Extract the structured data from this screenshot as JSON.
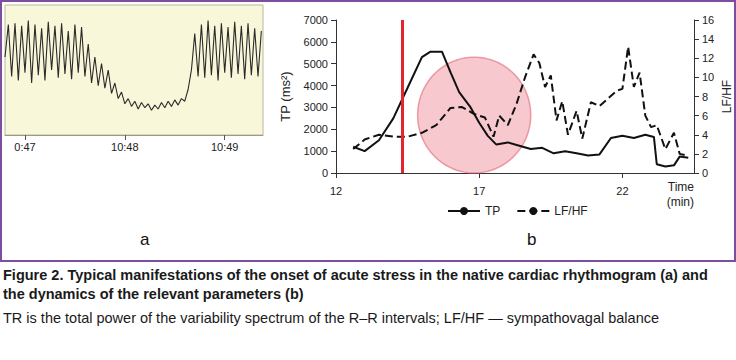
{
  "chart_data": [
    {
      "type": "line",
      "title": "a",
      "x": [
        0,
        2,
        4,
        6,
        8,
        10,
        12,
        14,
        16,
        18,
        20,
        22,
        24,
        26,
        28,
        30,
        32,
        34,
        36,
        38,
        40,
        42,
        44,
        46,
        48,
        50,
        52,
        54,
        56,
        58,
        60,
        62,
        64,
        66,
        68,
        70,
        72,
        74,
        76,
        78,
        80,
        82,
        84,
        86,
        88,
        90,
        92,
        94,
        96,
        98,
        100,
        102,
        104,
        106,
        108,
        110,
        112,
        114,
        116,
        118,
        120,
        122,
        124,
        126,
        128,
        130,
        132,
        134,
        136,
        138,
        140,
        142,
        144,
        146,
        148,
        150,
        152,
        154
      ],
      "values": [
        60,
        85,
        45,
        86,
        42,
        84,
        48,
        88,
        40,
        85,
        46,
        82,
        42,
        87,
        50,
        84,
        44,
        86,
        47,
        80,
        43,
        85,
        48,
        83,
        45,
        70,
        40,
        60,
        38,
        55,
        36,
        50,
        32,
        40,
        28,
        33,
        24,
        28,
        22,
        26,
        20,
        25,
        21,
        24,
        19,
        23,
        20,
        25,
        21,
        26,
        22,
        27,
        23,
        28,
        26,
        35,
        50,
        78,
        45,
        85,
        44,
        88,
        46,
        84,
        42,
        86,
        48,
        83,
        44,
        87,
        47,
        84,
        43,
        86,
        46,
        82,
        45,
        80
      ],
      "color": "#2b2b2b",
      "xlim": [
        0,
        155
      ],
      "xticks": [
        {
          "value": 12,
          "label": "0:47"
        },
        {
          "value": 72,
          "label": "10:48"
        },
        {
          "value": 132,
          "label": "10:49"
        }
      ],
      "ylim": [
        0,
        100
      ],
      "grid": false,
      "tick_labels": "x"
    },
    {
      "type": "line",
      "title": "b",
      "xlabel": "Time (min)",
      "ylabel": "TP (ms²)",
      "y2label": "LF/HF",
      "xlim": [
        12,
        24.5
      ],
      "xticks": [
        12,
        17,
        22
      ],
      "ylim": [
        0,
        7000
      ],
      "yticks": [
        0,
        1000,
        2000,
        3000,
        4000,
        5000,
        6000,
        7000
      ],
      "y2lim": [
        0,
        16
      ],
      "y2ticks": [
        0,
        2,
        4,
        6,
        8,
        10,
        12,
        14,
        16
      ],
      "grid": false,
      "legend": "bottom",
      "vline": {
        "x": 14.3,
        "color": "#e3262d"
      },
      "highlight": {
        "x": [
          14.85,
          18.8
        ],
        "y": [
          0,
          5300
        ],
        "color": "#f2a3ac"
      },
      "series": [
        {
          "name": "TP",
          "color": "#111111",
          "line_style": "solid",
          "x": [
            12.6,
            13,
            13.5,
            14,
            14.5,
            15,
            15.3,
            15.7,
            16,
            16.3,
            16.7,
            17,
            17.3,
            17.6,
            18,
            18.4,
            18.8,
            19.2,
            19.6,
            20,
            20.4,
            20.8,
            21.2,
            21.6,
            22,
            22.4,
            22.8,
            23.1,
            23.2,
            23.5,
            23.8,
            24,
            24.3
          ],
          "values": [
            1200,
            1000,
            1500,
            2500,
            3900,
            5300,
            5550,
            5550,
            4600,
            3700,
            3000,
            2300,
            1700,
            1300,
            1400,
            1250,
            1100,
            1150,
            900,
            1000,
            900,
            800,
            850,
            1600,
            1700,
            1600,
            1750,
            1650,
            400,
            300,
            350,
            750,
            700
          ]
        },
        {
          "name": "LF/HF",
          "color": "#111111",
          "line_style": "dashed",
          "axis": "y2",
          "x": [
            12.6,
            13,
            13.5,
            14,
            14.5,
            15,
            15.5,
            16,
            16.4,
            16.8,
            17.2,
            17.5,
            17.7,
            18,
            18.3,
            18.6,
            18.9,
            19.1,
            19.3,
            19.5,
            19.7,
            19.9,
            20.1,
            20.4,
            20.6,
            20.9,
            21.2,
            21.5,
            21.8,
            22,
            22.2,
            22.4,
            22.6,
            22.8,
            23,
            23.2,
            23.5,
            23.8,
            24,
            24.3
          ],
          "values": [
            2.5,
            3.5,
            4,
            3.8,
            3.8,
            4.2,
            5,
            6.8,
            6.9,
            6.2,
            5.8,
            3.8,
            6,
            5,
            7.2,
            10,
            12.4,
            11.5,
            9,
            10.2,
            5.5,
            7.5,
            4,
            6.5,
            3.6,
            7.4,
            7,
            7.8,
            8.6,
            8.8,
            13.2,
            9,
            10.5,
            6,
            4.8,
            5,
            2.5,
            4.2,
            2,
            1.8
          ]
        }
      ]
    }
  ],
  "caption": {
    "title": "Figure 2. Typical manifestations of the onset of acute stress in the native cardiac rhythmogram (a) and the dynamics of the relevant parameters (b)",
    "text": "TR is the total power of the variability spectrum of the R–R intervals; LF/HF — sympathovagal balance"
  }
}
